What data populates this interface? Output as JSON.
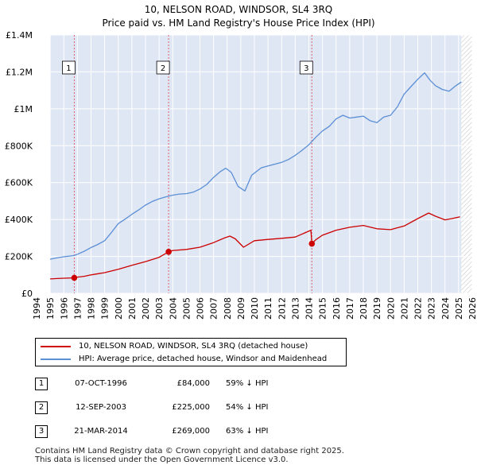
{
  "title_line1": "10, NELSON ROAD, WINDSOR, SL4 3RQ",
  "title_line2": "Price paid vs. HM Land Registry's House Price Index (HPI)",
  "colors": {
    "property": "#cc0000",
    "hpi": "#5b8fd6",
    "band": "#dfe6f4",
    "grid": "#ffffff",
    "marker_line": "#e06070"
  },
  "chart_data": {
    "type": "line",
    "title": "10, NELSON ROAD, WINDSOR, SL4 3RQ",
    "subtitle": "Price paid vs. HM Land Registry's House Price Index (HPI)",
    "xlabel": "",
    "ylabel": "",
    "xlim": [
      1994,
      2026
    ],
    "ylim": [
      0,
      1400000
    ],
    "x_ticks": [
      "1994",
      "1995",
      "1996",
      "1997",
      "1998",
      "1999",
      "2000",
      "2001",
      "2002",
      "2003",
      "2004",
      "2005",
      "2006",
      "2007",
      "2008",
      "2009",
      "2010",
      "2011",
      "2012",
      "2013",
      "2014",
      "2015",
      "2016",
      "2017",
      "2018",
      "2019",
      "2020",
      "2021",
      "2022",
      "2023",
      "2024",
      "2025",
      "2026"
    ],
    "y_ticks": [
      {
        "value": 0,
        "label": "£0"
      },
      {
        "value": 200000,
        "label": "£200K"
      },
      {
        "value": 400000,
        "label": "£400K"
      },
      {
        "value": 600000,
        "label": "£600K"
      },
      {
        "value": 800000,
        "label": "£800K"
      },
      {
        "value": 1000000,
        "label": "£1M"
      },
      {
        "value": 1200000,
        "label": "£1.2M"
      },
      {
        "value": 1400000,
        "label": "£1.4M"
      }
    ],
    "data_range": [
      1995,
      2025.2
    ],
    "series": [
      {
        "name": "10, NELSON ROAD, WINDSOR, SL4 3RQ (detached house)",
        "x": [
          1995,
          1995.5,
          1996,
          1996.77,
          1997,
          1997.5,
          1998,
          1999,
          2000,
          2001,
          2002,
          2003,
          2003.7,
          2004,
          2005,
          2006,
          2007,
          2007.8,
          2008.2,
          2008.6,
          2009.2,
          2010,
          2011,
          2012,
          2013,
          2014.15,
          2014.22,
          2014.5,
          2015,
          2016,
          2017,
          2018,
          2019,
          2020,
          2021,
          2022,
          2022.8,
          2023.3,
          2024,
          2024.5,
          2025.1
        ],
        "values": [
          78000,
          80000,
          82000,
          84000,
          88000,
          92000,
          100000,
          112000,
          130000,
          152000,
          172000,
          195000,
          225000,
          232000,
          238000,
          250000,
          275000,
          300000,
          310000,
          295000,
          250000,
          285000,
          292000,
          298000,
          305000,
          342000,
          269000,
          290000,
          315000,
          342000,
          358000,
          368000,
          350000,
          345000,
          365000,
          405000,
          435000,
          418000,
          398000,
          405000,
          415000
        ]
      },
      {
        "name": "HPI: Average price, detached house, Windsor and Maidenhead",
        "x": [
          1995,
          1995.5,
          1996,
          1996.77,
          1997,
          1997.5,
          1998,
          1998.5,
          1999,
          1999.5,
          2000,
          2000.5,
          2001,
          2001.5,
          2002,
          2002.5,
          2003,
          2003.5,
          2004,
          2004.5,
          2005,
          2005.5,
          2006,
          2006.5,
          2007,
          2007.5,
          2007.9,
          2008.3,
          2008.8,
          2009.3,
          2009.8,
          2010.5,
          2011,
          2011.5,
          2012,
          2012.5,
          2013,
          2013.5,
          2014,
          2014.5,
          2015,
          2015.5,
          2016,
          2016.5,
          2017,
          2017.5,
          2018,
          2018.5,
          2019,
          2019.5,
          2020,
          2020.5,
          2021,
          2021.5,
          2022,
          2022.5,
          2022.9,
          2023.3,
          2023.8,
          2024.3,
          2024.8,
          2025.2
        ],
        "values": [
          185000,
          192000,
          198000,
          205000,
          212000,
          228000,
          248000,
          265000,
          285000,
          330000,
          378000,
          402000,
          428000,
          452000,
          478000,
          498000,
          512000,
          523000,
          532000,
          538000,
          540000,
          548000,
          565000,
          590000,
          628000,
          660000,
          678000,
          655000,
          580000,
          555000,
          640000,
          680000,
          690000,
          700000,
          710000,
          725000,
          748000,
          775000,
          805000,
          845000,
          880000,
          905000,
          945000,
          965000,
          950000,
          955000,
          960000,
          935000,
          925000,
          955000,
          965000,
          1010000,
          1080000,
          1120000,
          1160000,
          1195000,
          1155000,
          1125000,
          1105000,
          1095000,
          1125000,
          1145000
        ]
      }
    ],
    "transactions": [
      {
        "num": "1",
        "x": 1996.77,
        "price": 84000,
        "date": "07-OCT-1996",
        "price_label": "£84,000",
        "hpi": "59% ↓ HPI"
      },
      {
        "num": "2",
        "x": 2003.7,
        "price": 225000,
        "date": "12-SEP-2003",
        "price_label": "£225,000",
        "hpi": "54% ↓ HPI"
      },
      {
        "num": "3",
        "x": 2014.22,
        "price": 269000,
        "date": "21-MAR-2014",
        "price_label": "£269,000",
        "hpi": "63% ↓ HPI"
      }
    ]
  },
  "legend": {
    "property_label": "10, NELSON ROAD, WINDSOR, SL4 3RQ (detached house)",
    "hpi_label": "HPI: Average price, detached house, Windsor and Maidenhead"
  },
  "footer": {
    "line1": "Contains HM Land Registry data © Crown copyright and database right 2025.",
    "line2": "This data is licensed under the Open Government Licence v3.0."
  }
}
